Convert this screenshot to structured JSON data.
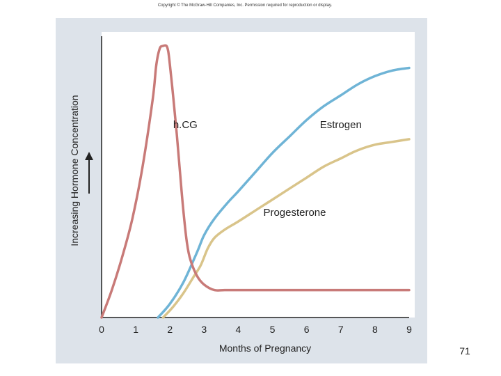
{
  "copyright": "Copyright © The McGraw-Hill Companies, Inc. Permission required for reproduction or display.",
  "page_number": "71",
  "colors": {
    "panel": "#dde3ea",
    "hcg": "#c87a78",
    "estrogen": "#6fb4d6",
    "progesterone": "#d9c48a",
    "axis": "#222222"
  },
  "chart_data": {
    "type": "line",
    "title": "",
    "xlabel": "Months of Pregnancy",
    "ylabel": "Increasing Hormone Concentration",
    "xlim": [
      0,
      9
    ],
    "ylim": [
      0,
      1
    ],
    "x_ticks": [
      "0",
      "1",
      "2",
      "3",
      "4",
      "5",
      "6",
      "7",
      "8",
      "9"
    ],
    "grid": false,
    "series": [
      {
        "name": "h.CG",
        "x": [
          0,
          0.3,
          0.6,
          0.9,
          1.2,
          1.5,
          1.6,
          1.7,
          1.8,
          1.9,
          1.95,
          2.0,
          2.1,
          2.2,
          2.3,
          2.4,
          2.5,
          2.6,
          2.8,
          3.0,
          3.3,
          3.6,
          4.0,
          5.0,
          6.0,
          7.0,
          8.0,
          9.0
        ],
        "y": [
          0,
          0.1,
          0.22,
          0.36,
          0.55,
          0.8,
          0.92,
          0.98,
          0.99,
          0.99,
          0.97,
          0.92,
          0.8,
          0.67,
          0.52,
          0.38,
          0.27,
          0.21,
          0.15,
          0.12,
          0.1,
          0.1,
          0.1,
          0.1,
          0.1,
          0.1,
          0.1,
          0.1
        ]
      },
      {
        "name": "Estrogen",
        "x": [
          1.65,
          2.0,
          2.4,
          2.8,
          3.0,
          3.3,
          3.7,
          4.0,
          4.5,
          5.0,
          5.5,
          6.0,
          6.5,
          7.0,
          7.5,
          8.0,
          8.5,
          9.0
        ],
        "y": [
          0,
          0.05,
          0.13,
          0.24,
          0.3,
          0.36,
          0.42,
          0.46,
          0.53,
          0.6,
          0.66,
          0.72,
          0.77,
          0.81,
          0.85,
          0.88,
          0.9,
          0.91
        ]
      },
      {
        "name": "Progesterone",
        "x": [
          1.8,
          2.1,
          2.4,
          2.7,
          2.9,
          3.1,
          3.3,
          3.6,
          4.0,
          4.5,
          5.0,
          5.5,
          6.0,
          6.5,
          7.0,
          7.5,
          8.0,
          8.5,
          9.0
        ],
        "y": [
          0,
          0.04,
          0.09,
          0.15,
          0.19,
          0.25,
          0.29,
          0.32,
          0.35,
          0.39,
          0.43,
          0.47,
          0.51,
          0.55,
          0.58,
          0.61,
          0.63,
          0.64,
          0.65
        ]
      }
    ],
    "annotations": [
      {
        "text": "h.CG",
        "series": "h.CG",
        "x": 2.45,
        "y": 0.69
      },
      {
        "text": "Estrogen",
        "series": "Estrogen",
        "x": 7.0,
        "y": 0.69
      },
      {
        "text": "Progesterone",
        "series": "Progesterone",
        "x": 5.65,
        "y": 0.37
      }
    ]
  }
}
